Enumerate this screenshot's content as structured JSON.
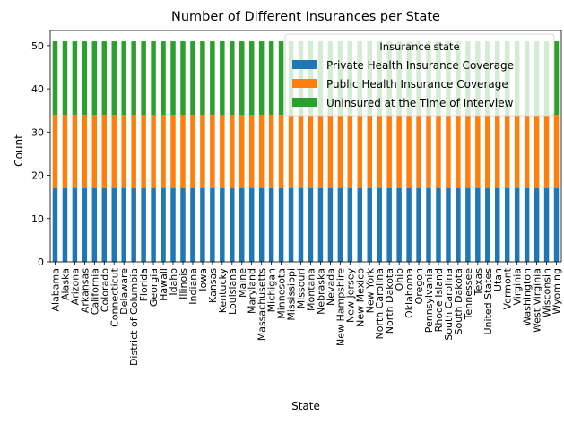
{
  "chart_data": {
    "type": "bar",
    "stacked": true,
    "title": "Number of Different Insurances per State",
    "xlabel": "State",
    "ylabel": "Count",
    "ylim": [
      0,
      53.5
    ],
    "yticks": [
      0,
      10,
      20,
      30,
      40,
      50
    ],
    "grid": false,
    "legend": {
      "title": "Insurance state",
      "placement": "top-right"
    },
    "categories": [
      "Alabama",
      "Alaska",
      "Arizona",
      "Arkansas",
      "California",
      "Colorado",
      "Connecticut",
      "Delaware",
      "District of Columbia",
      "Florida",
      "Georgia",
      "Hawaii",
      "Idaho",
      "Illinois",
      "Indiana",
      "Iowa",
      "Kansas",
      "Kentucky",
      "Louisiana",
      "Maine",
      "Maryland",
      "Massachusetts",
      "Michigan",
      "Minnesota",
      "Mississippi",
      "Missouri",
      "Montana",
      "Nebraska",
      "Nevada",
      "New Hampshire",
      "New Jersey",
      "New Mexico",
      "New York",
      "North Carolina",
      "North Dakota",
      "Ohio",
      "Oklahoma",
      "Oregon",
      "Pennsylvania",
      "Rhode Island",
      "South Carolina",
      "South Dakota",
      "Tennessee",
      "Texas",
      "United States",
      "Utah",
      "Vermont",
      "Virginia",
      "Washington",
      "West Virginia",
      "Wisconsin",
      "Wyoming"
    ],
    "series": [
      {
        "name": "Private Health Insurance Coverage",
        "color": "#1f77b4",
        "values": [
          17,
          17,
          17,
          17,
          17,
          17,
          17,
          17,
          17,
          17,
          17,
          17,
          17,
          17,
          17,
          17,
          17,
          17,
          17,
          17,
          17,
          17,
          17,
          17,
          17,
          17,
          17,
          17,
          17,
          17,
          17,
          17,
          17,
          17,
          17,
          17,
          17,
          17,
          17,
          17,
          17,
          17,
          17,
          17,
          17,
          17,
          17,
          17,
          17,
          17,
          17,
          17
        ]
      },
      {
        "name": "Public Health Insurance Coverage",
        "color": "#ff7f0e",
        "values": [
          17,
          17,
          17,
          17,
          17,
          17,
          17,
          17,
          17,
          17,
          17,
          17,
          17,
          17,
          17,
          17,
          17,
          17,
          17,
          17,
          17,
          17,
          17,
          17,
          17,
          17,
          17,
          17,
          17,
          17,
          17,
          17,
          17,
          17,
          17,
          17,
          17,
          17,
          17,
          17,
          17,
          17,
          17,
          17,
          17,
          17,
          17,
          17,
          17,
          17,
          17,
          17
        ]
      },
      {
        "name": "Uninsured at the Time of Interview",
        "color": "#2ca02c",
        "values": [
          17,
          17,
          17,
          17,
          17,
          17,
          17,
          17,
          17,
          17,
          17,
          17,
          17,
          17,
          17,
          17,
          17,
          17,
          17,
          17,
          17,
          17,
          17,
          17,
          17,
          17,
          17,
          17,
          17,
          17,
          17,
          17,
          17,
          17,
          17,
          17,
          17,
          17,
          17,
          17,
          17,
          17,
          17,
          17,
          17,
          17,
          17,
          17,
          17,
          17,
          17,
          17
        ]
      }
    ]
  }
}
